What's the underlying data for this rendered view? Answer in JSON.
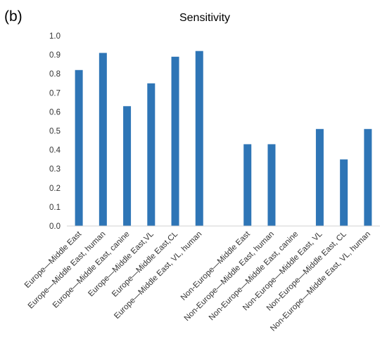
{
  "panel_label": "(b)",
  "chart_data": {
    "type": "bar",
    "title": "Sensitivity",
    "xlabel": "",
    "ylabel": "",
    "ylim": [
      0,
      1.0
    ],
    "yticks": [
      "0.0",
      "0.1",
      "0.2",
      "0.3",
      "0.4",
      "0.5",
      "0.6",
      "0.7",
      "0.8",
      "0.9",
      "1.0"
    ],
    "grid": false,
    "legend": "none",
    "bar_color": "#2E75B6",
    "categories": [
      "Europe—Middle East",
      "Europe—Middle East, human",
      "Europe—Middle East, canine",
      "Europe—Middle East,VL",
      "Europe—Middle East,CL",
      "Europe—Middle East, VL, human",
      "",
      "Non-Europe—Middle East",
      "Non-Europe—Middle East, human",
      "Non-Europe—Middle East, canine",
      "Non-Europe—Middle East, VL",
      "Non-Europe—Middle East, CL",
      "Non-Europe—Middle East, VL, human"
    ],
    "values": [
      0.82,
      0.91,
      0.63,
      0.75,
      0.89,
      0.92,
      null,
      0.43,
      0.43,
      0.0,
      0.51,
      0.35,
      0.51
    ]
  }
}
